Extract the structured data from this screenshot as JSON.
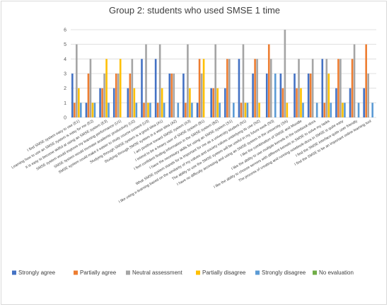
{
  "chart_data": {
    "type": "bar",
    "title": "Group 2: students who used SMSE 1 time",
    "xlabel": "",
    "ylabel": "",
    "ylim": [
      0,
      6
    ],
    "y_ticks": [
      0,
      1,
      2,
      3,
      4,
      5,
      6
    ],
    "grid": true,
    "legend_position": "bottom",
    "categories": [
      "I find SMSE system easy to use (E1)",
      "Learning how to use an SMSE system is easy for me (E2)",
      "It is easy to become skilful at using an SMSE system (E3)",
      "SMSE system would improve my learning performance (U1)",
      "SMSE system would increase academic productivity (U2)",
      "SMSE system could make it easier to study course content (U3)",
      "Studying through SMSE system is a good idea (A1)",
      "Studying through SMSE system is a wise idea (A2)",
      "I am positive toward SMSE system (A3)",
      "I intend to be a heavy user of SMSE system (B1)",
      "I feel confident finding information in the SMSE system (B2)",
      "I have the necessary skills for using an SMSE system (S1)",
      "What SMSE system stands for is important for me as a university student (N1)",
      "I like using e-learning based on the similarity of my values and society values underlying its use (N2)",
      "The ability to use the SMSE system will be useful in my future work (N3)",
      "I have no difficulty accessing and using an SMSE system in the university (SA)",
      "I like the combination of SMSE and Moodle",
      "I like the ability to use multiple kernels in the notebook-docs",
      "I like the ability to choose servers with different kernels in SMSE to solve my tasks",
      "The process of creating and running notebook-docs in SMSE is quite easy",
      "I find the SMSE interface quite user friendly",
      "I find the SMSE to be an important online learning tool"
    ],
    "series": [
      {
        "name": "Strongly agree",
        "color": "#4472c4",
        "values": [
          3,
          1,
          2,
          2,
          2,
          4,
          4,
          3,
          3,
          1,
          2,
          2,
          4,
          3,
          3,
          3,
          3,
          3,
          4,
          2,
          2,
          2
        ]
      },
      {
        "name": "Partially agree",
        "color": "#ed7d31",
        "values": [
          1,
          3,
          2,
          3,
          3,
          1,
          1,
          3,
          1,
          4,
          2,
          4,
          1,
          4,
          5,
          2,
          2,
          3,
          1,
          4,
          4,
          5
        ]
      },
      {
        "name": "Neutral assessment",
        "color": "#a5a5a5",
        "values": [
          5,
          4,
          3,
          3,
          4,
          5,
          5,
          3,
          5,
          3,
          5,
          4,
          5,
          4,
          4,
          6,
          4,
          4,
          4,
          4,
          5,
          3
        ]
      },
      {
        "name": "Partially disagree",
        "color": "#ffc000",
        "values": [
          2,
          1,
          4,
          4,
          2,
          1,
          2,
          0,
          2,
          4,
          2,
          0,
          1,
          1,
          0,
          1,
          2,
          0,
          3,
          1,
          0,
          0
        ]
      },
      {
        "name": "Strongly disagree",
        "color": "#5b9bd5",
        "values": [
          1,
          1,
          1,
          0,
          1,
          1,
          1,
          1,
          1,
          0,
          1,
          1,
          1,
          0,
          3,
          0,
          1,
          1,
          1,
          1,
          1,
          1
        ]
      },
      {
        "name": "No evaluation",
        "color": "#70ad47",
        "values": [
          0,
          0,
          0,
          0,
          0,
          0,
          0,
          0,
          0,
          0,
          0,
          0,
          0,
          0,
          0,
          0,
          0,
          0,
          0,
          0,
          0,
          0
        ]
      }
    ]
  }
}
